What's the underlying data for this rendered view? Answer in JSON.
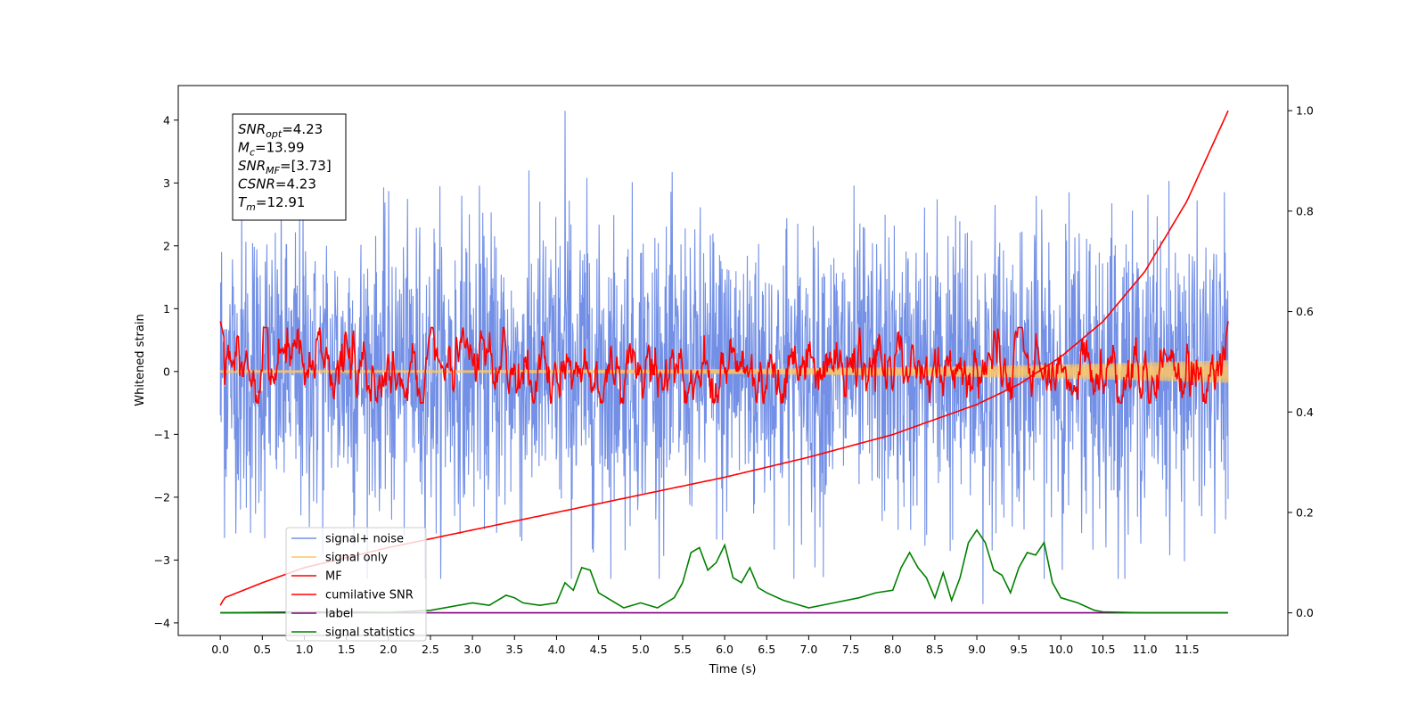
{
  "chart_data": {
    "type": "line",
    "xlabel": "Time (s)",
    "ylabel": "Whitened strain",
    "xlim": [
      -0.5,
      12.7
    ],
    "ylim": [
      -4.2,
      4.55
    ],
    "y2lim": [
      -0.045,
      1.05
    ],
    "x_ticks": [
      "0.0",
      "0.5",
      "1.0",
      "1.5",
      "2.0",
      "2.5",
      "3.0",
      "3.5",
      "4.0",
      "4.5",
      "5.0",
      "5.5",
      "6.0",
      "6.5",
      "7.0",
      "7.5",
      "8.0",
      "8.5",
      "9.0",
      "9.5",
      "10.0",
      "10.5",
      "11.0",
      "11.5"
    ],
    "y_ticks": [
      "4",
      "3",
      "2",
      "1",
      "0",
      "−1",
      "−2",
      "−3",
      "−4"
    ],
    "y2_ticks": [
      "1.0",
      "0.8",
      "0.6",
      "0.4",
      "0.2",
      "0.0"
    ],
    "legend_position": "lower left",
    "series": [
      {
        "name": "signal+ noise",
        "color": "#7390e6",
        "axis": "left",
        "kind": "noise",
        "x_range": [
          0,
          11.99
        ],
        "typical_range": [
          -1.6,
          2.0
        ],
        "extremes_max": 4.15,
        "extremes_min": -3.7,
        "extremes_min_at": 9.07
      },
      {
        "name": "signal only",
        "color": "#ffc761",
        "axis": "left",
        "kind": "chirp",
        "x_range": [
          0,
          11.99
        ],
        "amplitude_start": 0.02,
        "amplitude_end": 0.18
      },
      {
        "name": "MF",
        "color": "#ff0000",
        "axis": "left",
        "kind": "filtered",
        "x_range": [
          0,
          11.99
        ],
        "typical_range": [
          -0.5,
          0.7
        ],
        "start_value": 0.8,
        "end_value": 0.8
      },
      {
        "name": "cumilative SNR",
        "color": "#ff0000",
        "axis": "right",
        "kind": "curve",
        "x": [
          0,
          0.05,
          0.5,
          1,
          2,
          3,
          4,
          5,
          6,
          7,
          8,
          9,
          9.5,
          10,
          10.5,
          11,
          11.5,
          11.99
        ],
        "y": [
          0.015,
          0.03,
          0.06,
          0.09,
          0.13,
          0.165,
          0.2,
          0.235,
          0.27,
          0.31,
          0.355,
          0.415,
          0.455,
          0.51,
          0.58,
          0.68,
          0.82,
          1.0
        ]
      },
      {
        "name": "label",
        "color": "#800080",
        "axis": "right",
        "kind": "constant",
        "x": [
          0,
          11.99
        ],
        "y": [
          0,
          0
        ]
      },
      {
        "name": "signal statistics",
        "color": "#008000",
        "axis": "right",
        "kind": "curve",
        "x": [
          0,
          0.5,
          1,
          1.5,
          2,
          2.5,
          3,
          3.2,
          3.4,
          3.5,
          3.6,
          3.8,
          4,
          4.1,
          4.2,
          4.3,
          4.4,
          4.5,
          4.6,
          4.7,
          4.8,
          5,
          5.2,
          5.4,
          5.5,
          5.6,
          5.7,
          5.8,
          5.9,
          6,
          6.1,
          6.2,
          6.3,
          6.4,
          6.5,
          6.7,
          7,
          7.3,
          7.6,
          7.8,
          8,
          8.1,
          8.2,
          8.3,
          8.4,
          8.5,
          8.6,
          8.7,
          8.8,
          8.9,
          9,
          9.1,
          9.2,
          9.3,
          9.4,
          9.5,
          9.6,
          9.7,
          9.8,
          9.9,
          10,
          10.2,
          10.4,
          10.5,
          11,
          11.5,
          11.99
        ],
        "y": [
          0,
          0.001,
          0.002,
          0.002,
          0.001,
          0.005,
          0.02,
          0.015,
          0.035,
          0.03,
          0.02,
          0.015,
          0.02,
          0.06,
          0.045,
          0.09,
          0.085,
          0.04,
          0.03,
          0.02,
          0.01,
          0.02,
          0.01,
          0.03,
          0.06,
          0.12,
          0.13,
          0.085,
          0.1,
          0.135,
          0.07,
          0.06,
          0.09,
          0.05,
          0.04,
          0.025,
          0.01,
          0.02,
          0.03,
          0.04,
          0.045,
          0.09,
          0.12,
          0.09,
          0.07,
          0.03,
          0.08,
          0.025,
          0.07,
          0.14,
          0.165,
          0.14,
          0.085,
          0.075,
          0.04,
          0.09,
          0.12,
          0.115,
          0.14,
          0.06,
          0.03,
          0.02,
          0.005,
          0.002,
          0,
          0,
          0
        ]
      }
    ]
  },
  "annotation": {
    "lines": [
      {
        "base": "SNR",
        "sub": "opt",
        "value": "=4.23"
      },
      {
        "base": "M",
        "sub": "c",
        "value": "=13.99"
      },
      {
        "base": "SNR",
        "sub": "MF",
        "value": "=[3.73]"
      },
      {
        "base": "CSNR",
        "sub": "",
        "value": "=4.23"
      },
      {
        "base": "T",
        "sub": "m",
        "value": "=12.91"
      }
    ]
  }
}
